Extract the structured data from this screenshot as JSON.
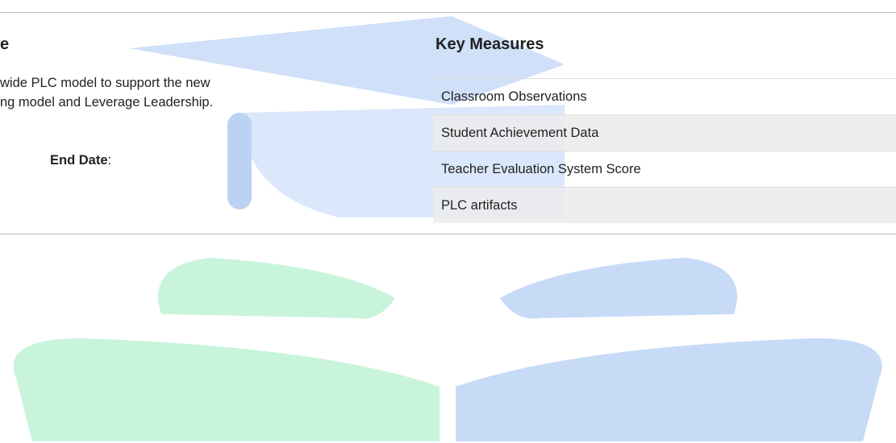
{
  "left": {
    "heading": "e",
    "description_lines": [
      "wide PLC model to support the new",
      "ng model and Leverage Leadership."
    ],
    "end_date_label": "End Date",
    "end_date_separator": ":"
  },
  "right": {
    "heading": "Key Measures",
    "measures": [
      "Classroom Observations",
      "Student Achievement Data",
      "Teacher Evaluation System Score",
      "PLC artifacts"
    ]
  }
}
